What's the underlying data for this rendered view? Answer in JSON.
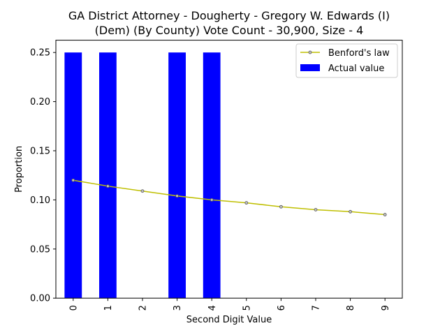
{
  "chart_data": {
    "type": "bar",
    "title_lines": [
      "GA District Attorney - Dougherty - Gregory W. Edwards (I)",
      "(Dem) (By County) Vote Count - 30,900, Size - 4"
    ],
    "xlabel": "Second Digit Value",
    "ylabel": "Proportion",
    "categories": [
      "0",
      "1",
      "2",
      "3",
      "4",
      "5",
      "6",
      "7",
      "8",
      "9"
    ],
    "ylim": [
      0,
      0.2625
    ],
    "yticks": [
      "0.00",
      "0.05",
      "0.10",
      "0.15",
      "0.20",
      "0.25"
    ],
    "series": [
      {
        "name": "Actual value",
        "kind": "bar",
        "color": "#0000ff",
        "values": [
          0.25,
          0.25,
          0,
          0.25,
          0.25,
          0,
          0,
          0,
          0,
          0
        ]
      },
      {
        "name": "Benford's law",
        "kind": "line",
        "color": "#bfbf00",
        "values": [
          0.12,
          0.114,
          0.109,
          0.104,
          0.1,
          0.097,
          0.093,
          0.09,
          0.088,
          0.085
        ]
      }
    ],
    "legend": [
      "Benford's law",
      "Actual value"
    ],
    "legend_position": "top-right"
  }
}
